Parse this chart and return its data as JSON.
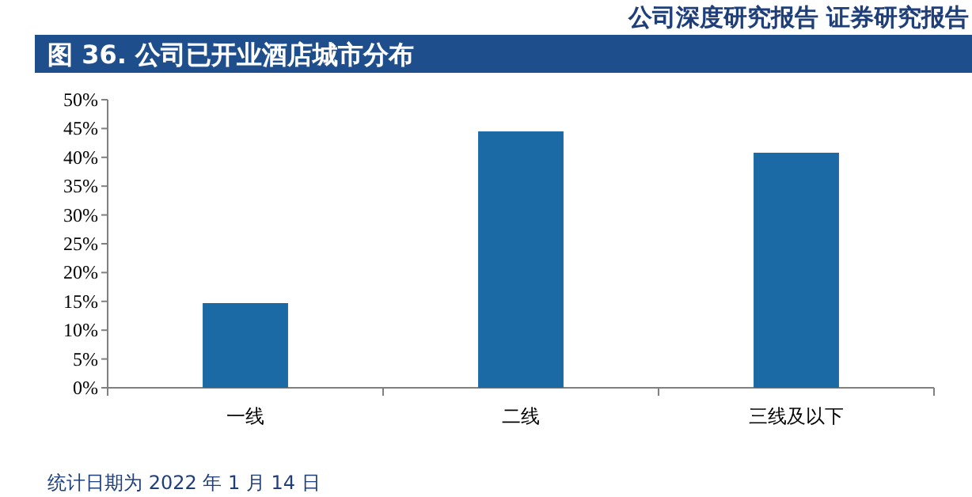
{
  "chart_data": {
    "type": "bar",
    "title": "图 36. 公司已开业酒店城市分布",
    "categories": [
      "一线",
      "二线",
      "三线及以下"
    ],
    "values": [
      14.7,
      44.5,
      40.8
    ],
    "color": "#1b6aa5",
    "ylim": [
      0,
      50
    ],
    "yticks": [
      {
        "value": 0,
        "label": "0%"
      },
      {
        "value": 5,
        "label": "5%"
      },
      {
        "value": 10,
        "label": "10%"
      },
      {
        "value": 15,
        "label": "15%"
      },
      {
        "value": 20,
        "label": "20%"
      },
      {
        "value": 25,
        "label": "25%"
      },
      {
        "value": 30,
        "label": "30%"
      },
      {
        "value": 35,
        "label": "35%"
      },
      {
        "value": 40,
        "label": "40%"
      },
      {
        "value": 45,
        "label": "45%"
      },
      {
        "value": 50,
        "label": "50%"
      }
    ],
    "annotations": [
      "公司深度研究报告  证券研究报告",
      "统计日期为 2022 年 1 月 14 日"
    ]
  }
}
